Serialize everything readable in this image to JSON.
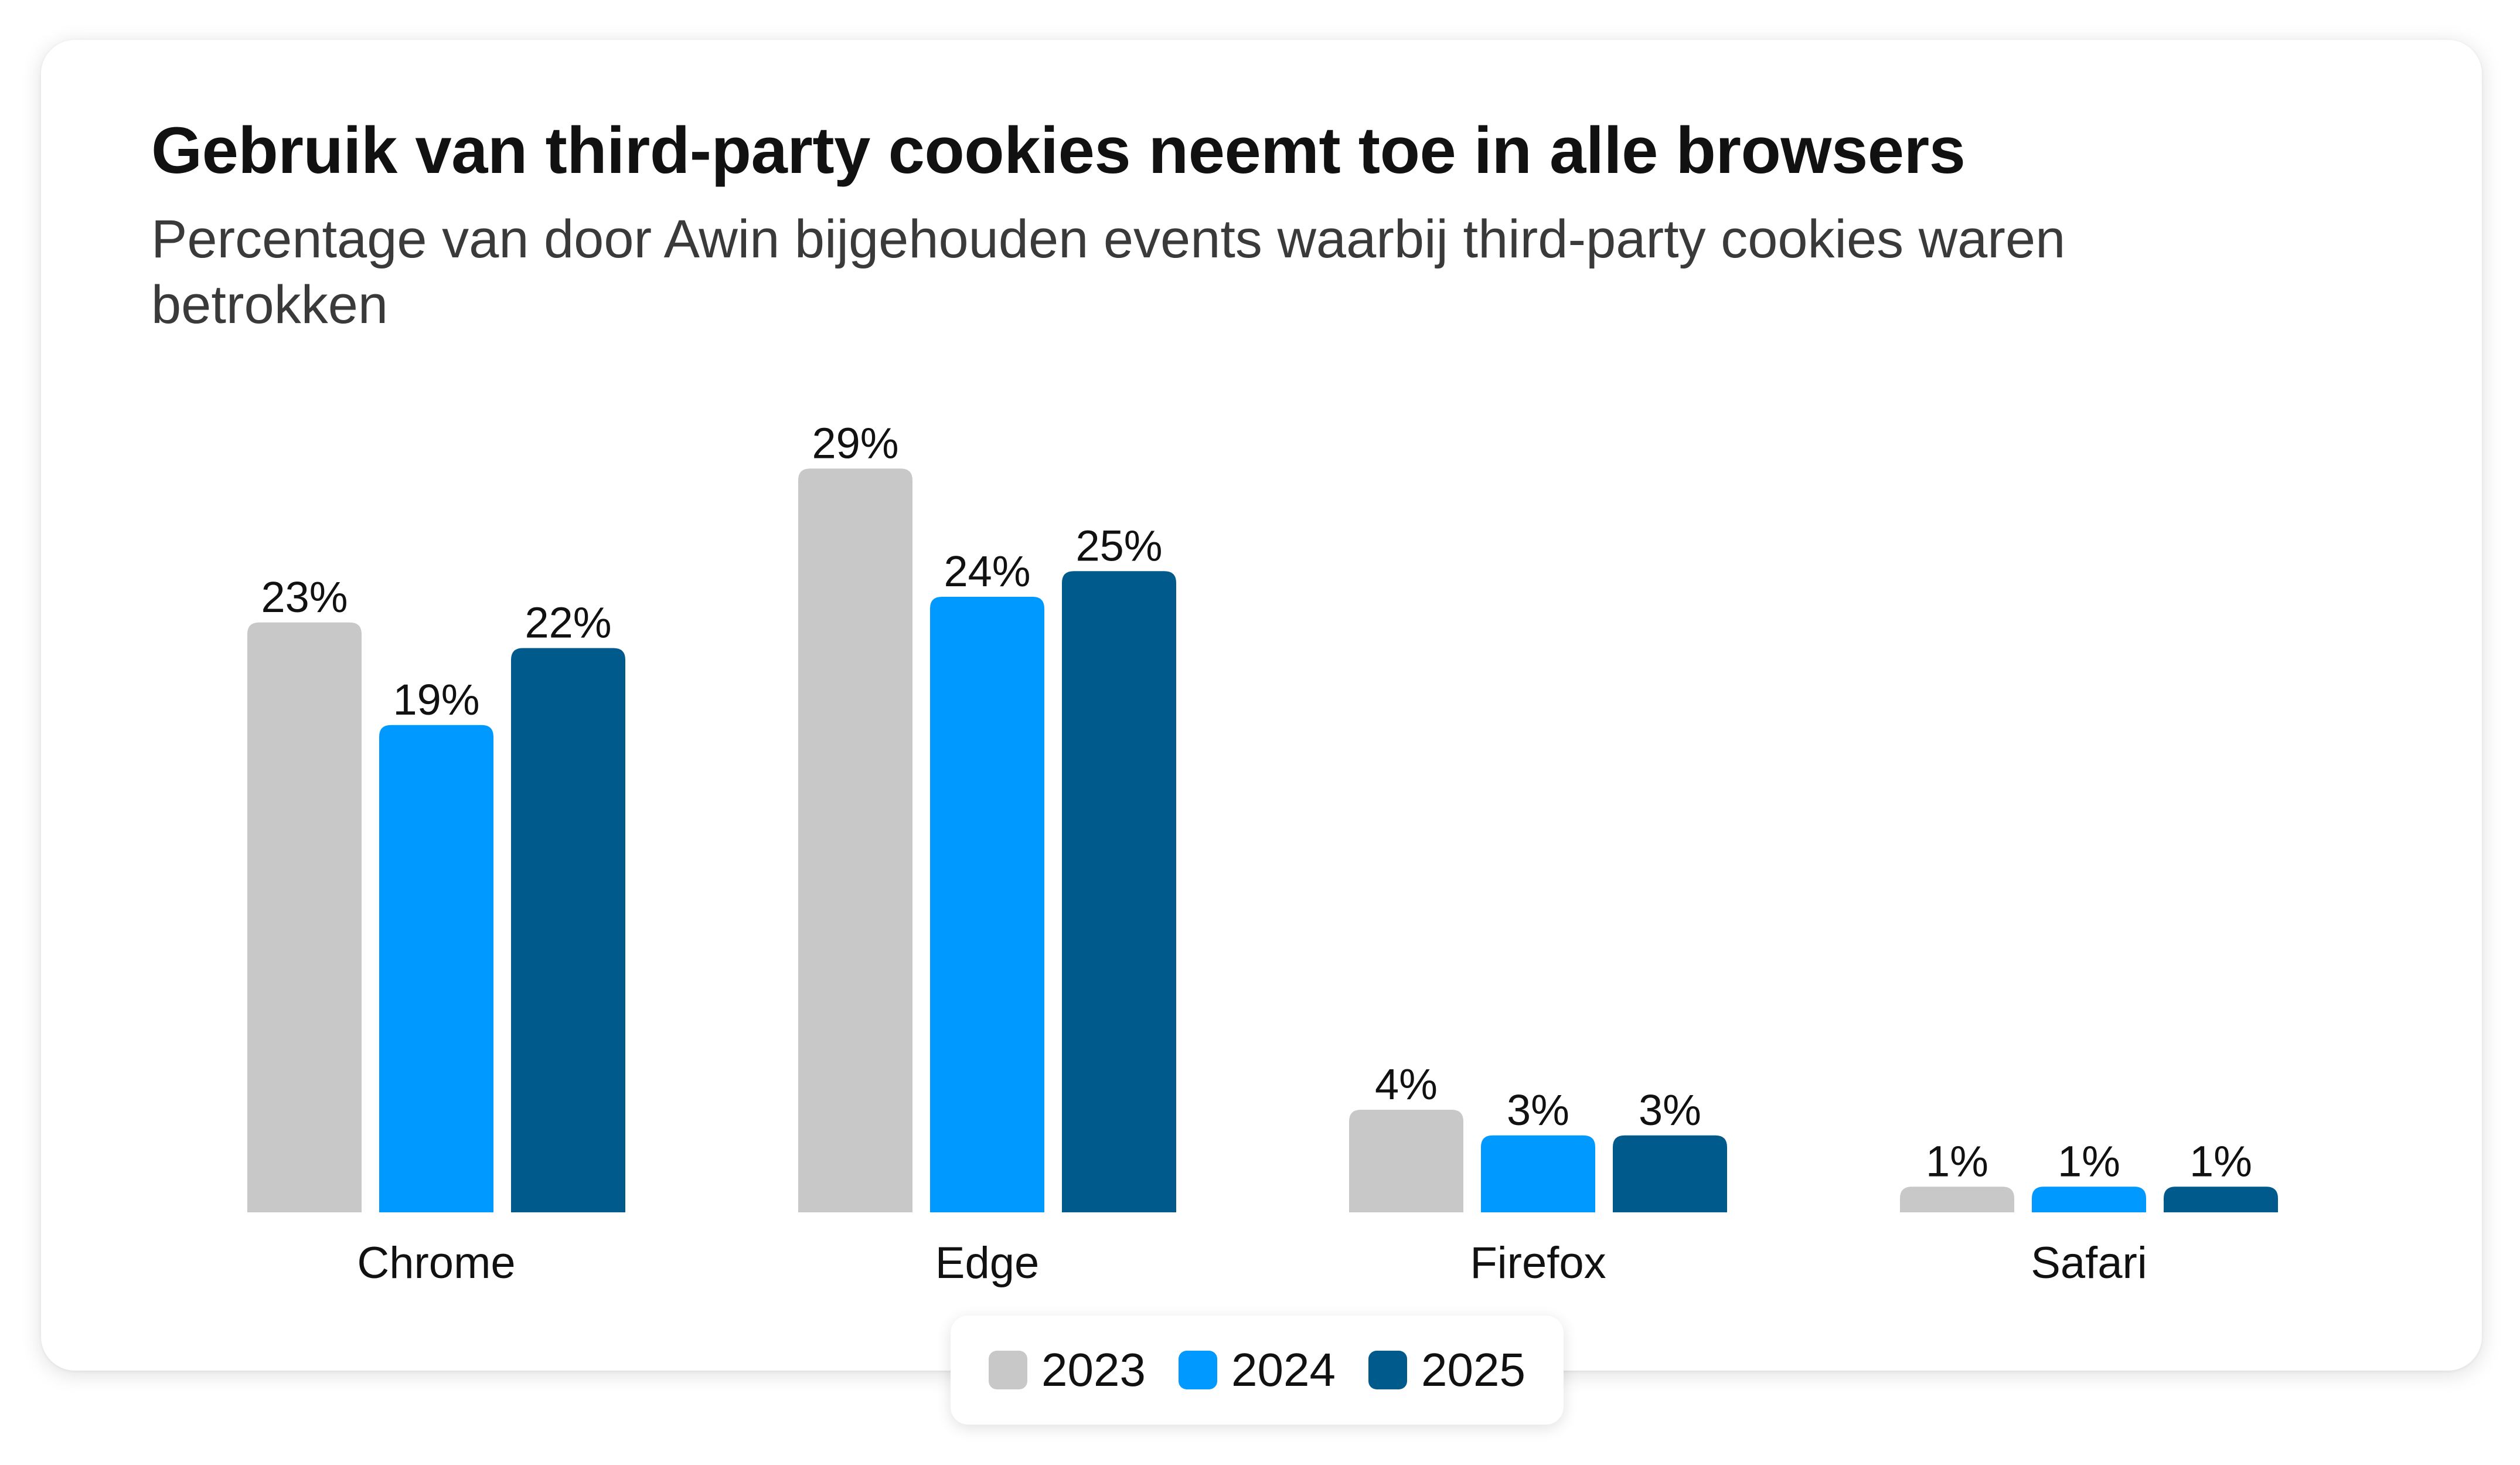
{
  "chart_data": {
    "type": "bar",
    "title": "Gebruik van third-party cookies neemt toe in alle browsers",
    "subtitle": "Percentage van door Awin bijgehouden events waarbij third-party cookies waren betrokken",
    "categories": [
      "Chrome",
      "Edge",
      "Firefox",
      "Safari"
    ],
    "series": [
      {
        "name": "2023",
        "color": "#c8c8c8",
        "values": [
          23,
          29,
          4,
          1
        ],
        "labels": [
          "23%",
          "29%",
          "4%",
          "1%"
        ]
      },
      {
        "name": "2024",
        "color": "#0099ff",
        "values": [
          19,
          24,
          3,
          1
        ],
        "labels": [
          "19%",
          "24%",
          "3%",
          "1%"
        ]
      },
      {
        "name": "2025",
        "color": "#005a8c",
        "values": [
          22,
          25,
          3,
          1
        ],
        "labels": [
          "22%",
          "25%",
          "3%",
          "1%"
        ]
      }
    ],
    "ylim": [
      0,
      29
    ],
    "grid": false,
    "legend_position": "bottom"
  }
}
